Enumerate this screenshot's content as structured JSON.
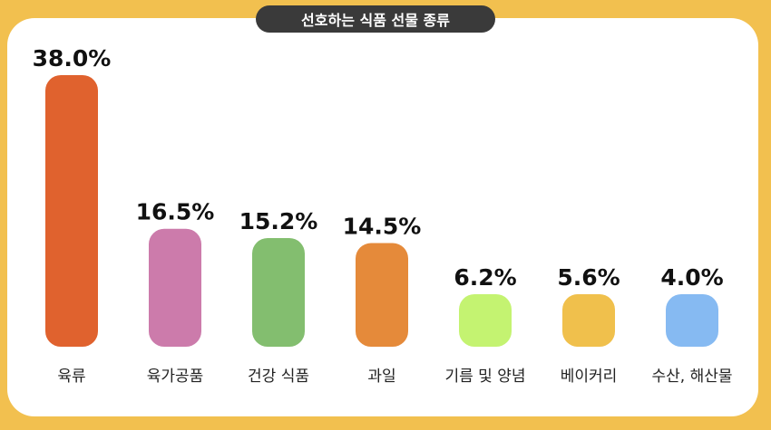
{
  "chart_data": {
    "type": "bar",
    "title": "선호하는 식품 선물 종류",
    "categories": [
      "육류",
      "육가공품",
      "건강 식품",
      "과일",
      "기름 및 양념",
      "베이커리",
      "수산, 해산물"
    ],
    "values": [
      38.0,
      16.5,
      15.2,
      14.5,
      6.2,
      5.6,
      4.0
    ],
    "value_labels": [
      "38.0%",
      "16.5%",
      "15.2%",
      "14.5%",
      "6.2%",
      "5.6%",
      "4.0%"
    ],
    "colors": [
      "#E0622E",
      "#CC7BAB",
      "#83BE6F",
      "#E58A3A",
      "#C4F371",
      "#F0C04C",
      "#86BAF2"
    ],
    "ylim": [
      0,
      38.0
    ],
    "grid": false,
    "legend": "none"
  }
}
